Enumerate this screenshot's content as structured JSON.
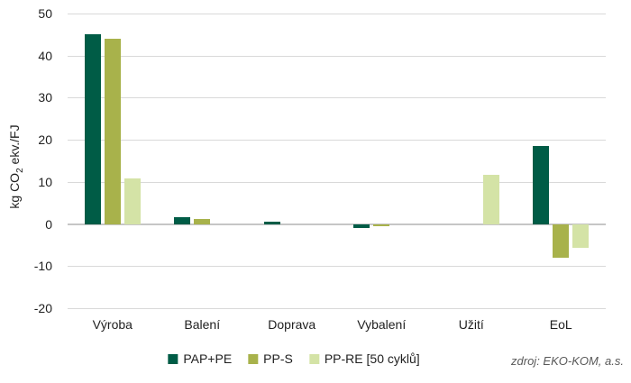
{
  "chart_data": {
    "type": "bar",
    "title": "",
    "categories": [
      "Výroba",
      "Balení",
      "Doprava",
      "Vybalení",
      "Užití",
      "EoL"
    ],
    "series": [
      {
        "name": "PAP+PE",
        "color": "#005c46",
        "values": [
          45,
          1.7,
          0.6,
          -1.0,
          0,
          18.5
        ]
      },
      {
        "name": "PP-S",
        "color": "#a8b24b",
        "values": [
          44,
          1.1,
          0,
          -0.5,
          0,
          -8
        ]
      },
      {
        "name": "PP-RE [50 cyklů]",
        "color": "#d4e3a6",
        "values": [
          10.8,
          0,
          0,
          0,
          11.7,
          -5.7
        ]
      }
    ],
    "xlabel": "",
    "ylabel": "kg CO2 ekv./FJ",
    "ylabel_parts": {
      "pre": "kg CO",
      "sub": "2",
      "post": " ekv./FJ"
    },
    "ylim": [
      -20,
      50
    ],
    "ytick_step": 10,
    "grid": true,
    "legend_position": "bottom"
  },
  "source_note": "zdroj: EKO-KOM, a.s.",
  "colors": {
    "gridline": "#d9d9d9",
    "zero_line": "#c6c6c6",
    "text": "#1f1f1f",
    "source_text": "#595959"
  }
}
